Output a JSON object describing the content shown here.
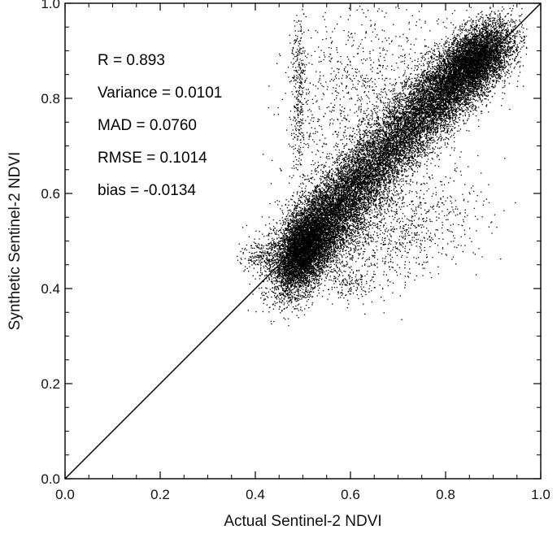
{
  "chart_data": {
    "type": "scatter",
    "title": "",
    "xlabel": "Actual Sentinel-2 NDVI",
    "ylabel": "Synthetic Sentinel-2 NDVI",
    "xlim": [
      0.0,
      1.0
    ],
    "ylim": [
      0.0,
      1.0
    ],
    "x_ticks": [
      "0.0",
      "0.2",
      "0.4",
      "0.6",
      "0.8",
      "1.0"
    ],
    "y_ticks": [
      "0.0",
      "0.2",
      "0.4",
      "0.6",
      "0.8",
      "1.0"
    ],
    "reference_line": {
      "from": [
        0.0,
        0.0
      ],
      "to": [
        1.0,
        1.0
      ]
    },
    "grid": false,
    "legend": false,
    "statistics": [
      {
        "label": "R = 0.893"
      },
      {
        "label": "Variance = 0.0101"
      },
      {
        "label": "MAD =  0.0760"
      },
      {
        "label": "RMSE =  0.1014"
      },
      {
        "label": "bias =  -0.0134"
      }
    ],
    "point_clusters": [
      {
        "cx": 0.5,
        "cy": 0.48,
        "sx": 0.03,
        "sy": 0.045,
        "rho": 0.45,
        "n": 5200
      },
      {
        "cx": 0.55,
        "cy": 0.54,
        "sx": 0.05,
        "sy": 0.06,
        "rho": 0.55,
        "n": 4200
      },
      {
        "cx": 0.65,
        "cy": 0.66,
        "sx": 0.07,
        "sy": 0.075,
        "rho": 0.8,
        "n": 5000
      },
      {
        "cx": 0.78,
        "cy": 0.8,
        "sx": 0.06,
        "sy": 0.06,
        "rho": 0.7,
        "n": 4800
      },
      {
        "cx": 0.86,
        "cy": 0.88,
        "sx": 0.04,
        "sy": 0.04,
        "rho": 0.5,
        "n": 5200
      },
      {
        "cx": 0.62,
        "cy": 0.8,
        "sx": 0.08,
        "sy": 0.1,
        "rho": 0.2,
        "n": 900
      },
      {
        "cx": 0.7,
        "cy": 0.52,
        "sx": 0.09,
        "sy": 0.06,
        "rho": 0.4,
        "n": 900
      },
      {
        "cx": 0.49,
        "cy": 0.82,
        "sx": 0.008,
        "sy": 0.09,
        "rho": 0.0,
        "n": 350
      },
      {
        "cx": 0.42,
        "cy": 0.47,
        "sx": 0.03,
        "sy": 0.02,
        "rho": 0.0,
        "n": 300
      },
      {
        "cx": 0.6,
        "cy": 0.41,
        "sx": 0.03,
        "sy": 0.015,
        "rho": 0.0,
        "n": 120
      }
    ]
  }
}
